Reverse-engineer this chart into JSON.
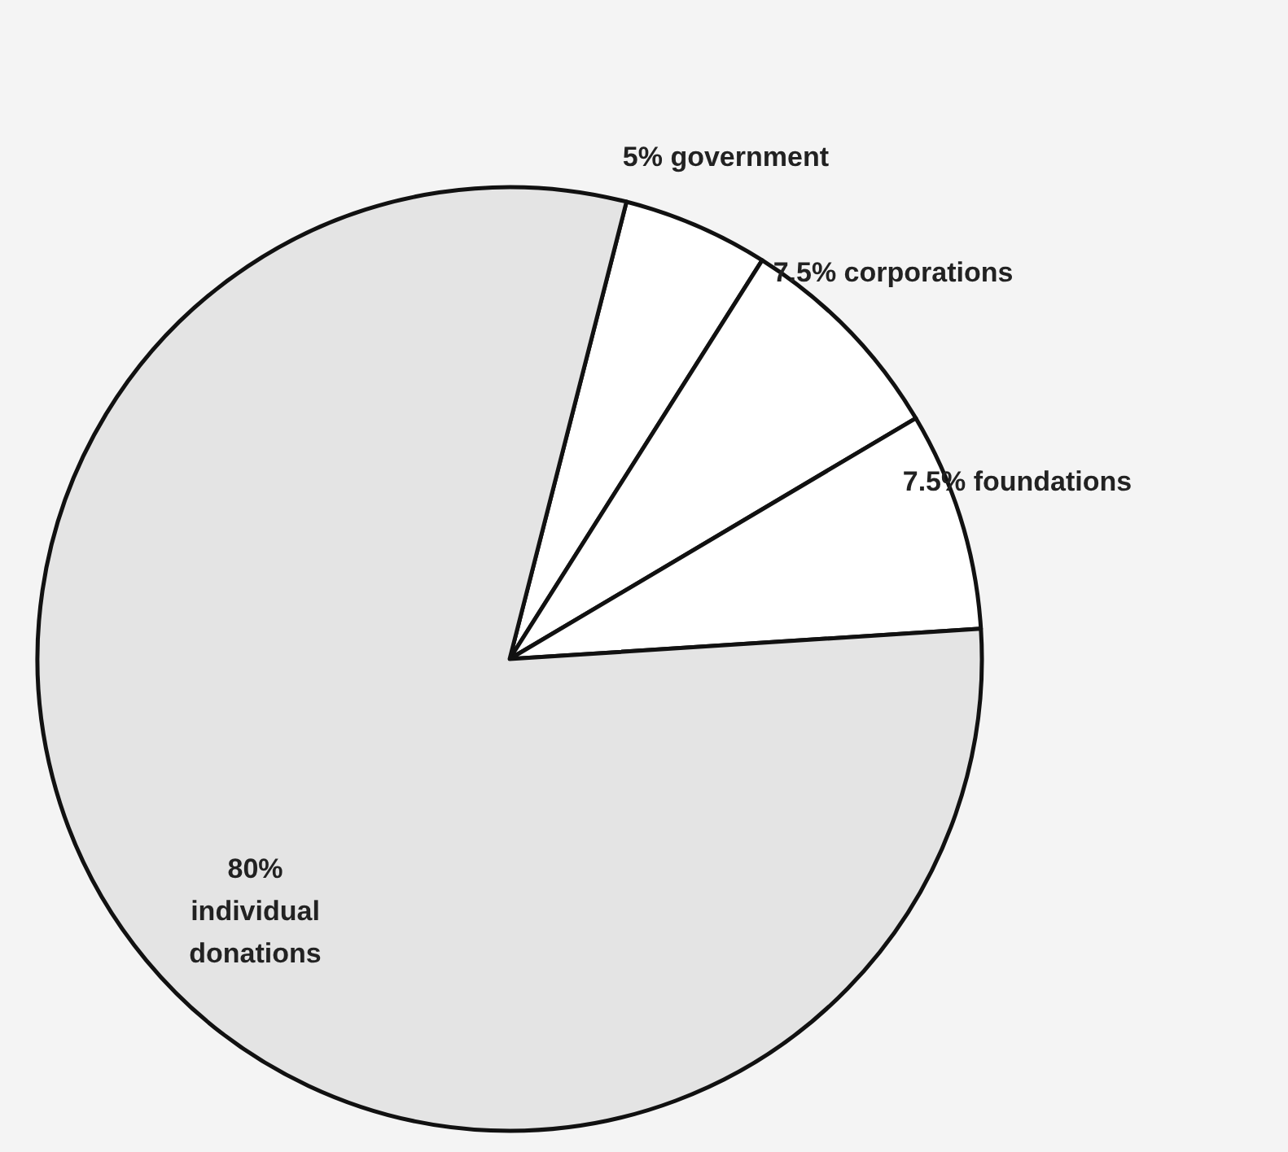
{
  "chart_data": {
    "type": "pie",
    "categories": [
      "government",
      "corporations",
      "foundations",
      "individual donations"
    ],
    "values": [
      5,
      7.5,
      7.5,
      80
    ],
    "value_labels": [
      "5%",
      "7.5%",
      "7.5%",
      "80%"
    ],
    "colors": [
      "#ffffff",
      "#ffffff",
      "#ffffff",
      "#e4e4e4"
    ]
  }
}
